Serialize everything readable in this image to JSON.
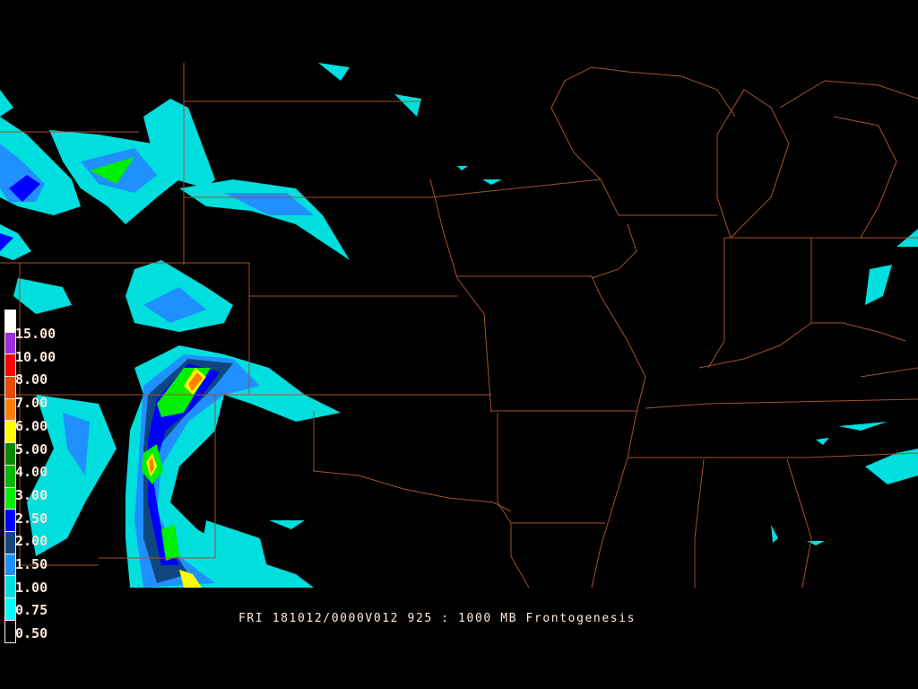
{
  "title": "FRI 181012/0000V012 925 : 1000 MB Frontogenesis",
  "legend": {
    "labels": [
      "15.00",
      "10.00",
      "8.00",
      "7.00",
      "6.00",
      "5.00",
      "4.00",
      "3.00",
      "2.50",
      "2.00",
      "1.50",
      "1.00",
      "0.75",
      "0.50"
    ],
    "colors": [
      "#ffffff",
      "#9a2ee0",
      "#ff0000",
      "#e84a00",
      "#ff8000",
      "#ffff00",
      "#008a00",
      "#00b800",
      "#00ee00",
      "#0000ff",
      "#0f4680",
      "#2090ff",
      "#00dede",
      "#00ffff",
      "#000000"
    ]
  },
  "colors": {
    "background": "#000000",
    "boundaries": "#a0522d",
    "text": "#ffe8dc"
  }
}
